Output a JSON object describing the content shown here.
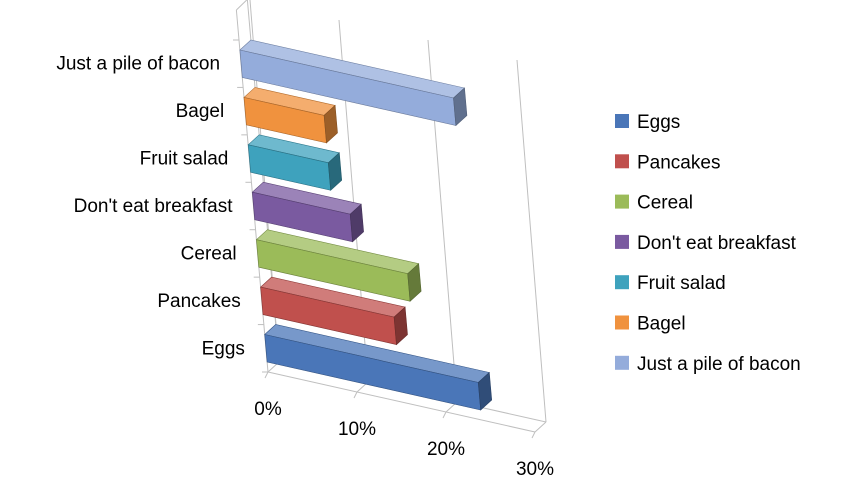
{
  "chart_data": {
    "type": "bar",
    "orientation": "horizontal",
    "style": "3d",
    "categories": [
      "Eggs",
      "Pancakes",
      "Cereal",
      "Don't eat breakfast",
      "Fruit salad",
      "Bagel",
      "Just a pile of bacon"
    ],
    "values": [
      24,
      15,
      17,
      11,
      9,
      9,
      24
    ],
    "unit": "%",
    "xlim": [
      0,
      30
    ],
    "x_ticks": [
      "0%",
      "10%",
      "20%",
      "30%"
    ],
    "grid": true,
    "legend": {
      "placement": "right",
      "entries": [
        "Eggs",
        "Pancakes",
        "Cereal",
        "Don't eat breakfast",
        "Fruit salad",
        "Bagel",
        "Just a pile of bacon"
      ]
    },
    "colors": [
      "#4a76b8",
      "#c0504d",
      "#9bbb59",
      "#7a5aa0",
      "#3ea2bd",
      "#f0923e",
      "#94acdb"
    ]
  }
}
